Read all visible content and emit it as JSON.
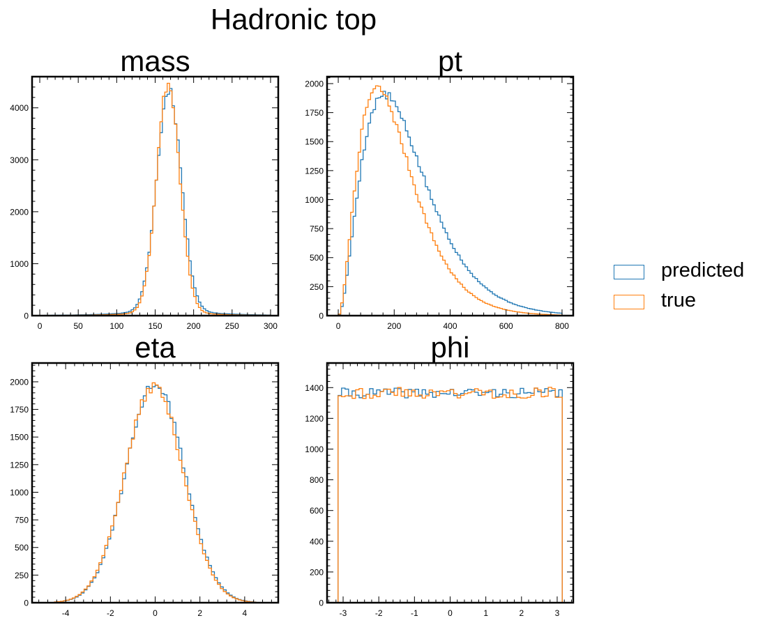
{
  "figure": {
    "suptitle": "Hadronic top"
  },
  "colors": {
    "predicted": "#1f77b4",
    "true": "#ff7f0e"
  },
  "legend": {
    "placement": "right",
    "items": [
      {
        "label": "predicted",
        "color": "#1f77b4"
      },
      {
        "label": "true",
        "color": "#ff7f0e"
      }
    ]
  },
  "chart_data": [
    {
      "type": "histogram-step",
      "title": "mass",
      "xlim": [
        -10,
        310
      ],
      "ylim": [
        0,
        4600
      ],
      "xticks": [
        0,
        50,
        100,
        150,
        200,
        250,
        300
      ],
      "xticklabels": [
        "0",
        "50",
        "100",
        "150",
        "200",
        "250",
        "300"
      ],
      "yticks": [
        0,
        1000,
        2000,
        3000,
        4000
      ],
      "yticklabels": [
        "0",
        "1000",
        "2000",
        "3000",
        "4000"
      ],
      "profile": "bell",
      "series": [
        {
          "name": "predicted",
          "range": [
            0,
            300
          ],
          "bins": 96,
          "peak": 4200,
          "center": 168,
          "sigma": 16,
          "tail": 0.04,
          "seed": 11
        },
        {
          "name": "true",
          "range": [
            0,
            300
          ],
          "bins": 96,
          "peak": 4380,
          "center": 167,
          "sigma": 15,
          "tail": 0.025,
          "seed": 23
        }
      ]
    },
    {
      "type": "histogram-step",
      "title": "pt",
      "xlim": [
        -40,
        840
      ],
      "ylim": [
        0,
        2060
      ],
      "xticks": [
        0,
        200,
        400,
        600,
        800
      ],
      "xticklabels": [
        "0",
        "200",
        "400",
        "600",
        "800"
      ],
      "yticks": [
        0,
        250,
        500,
        750,
        1000,
        1250,
        1500,
        1750,
        2000
      ],
      "yticklabels": [
        "0",
        "250",
        "500",
        "750",
        "1000",
        "1250",
        "1500",
        "1750",
        "2000"
      ],
      "profile": "rise-fall",
      "series": [
        {
          "name": "predicted",
          "range": [
            0,
            800
          ],
          "bins": 90,
          "peak": 1905,
          "mode": 165,
          "seed": 5
        },
        {
          "name": "true",
          "range": [
            0,
            800
          ],
          "bins": 90,
          "peak": 1960,
          "mode": 140,
          "seed": 7
        }
      ]
    },
    {
      "type": "histogram-step",
      "title": "eta",
      "xlim": [
        -5.5,
        5.5
      ],
      "ylim": [
        0,
        2170
      ],
      "xticks": [
        -4,
        -2,
        0,
        2,
        4
      ],
      "xticklabels": [
        "-4",
        "-2",
        "0",
        "2",
        "4"
      ],
      "yticks": [
        0,
        250,
        500,
        750,
        1000,
        1250,
        1500,
        1750,
        2000
      ],
      "yticklabels": [
        "0",
        "250",
        "500",
        "750",
        "1000",
        "1250",
        "1500",
        "1750",
        "2000"
      ],
      "profile": "bell",
      "series": [
        {
          "name": "predicted",
          "range": [
            -4.5,
            4.5
          ],
          "bins": 68,
          "peak": 1990,
          "center": 0.0,
          "sigma": 1.3,
          "tail": 0.0,
          "seed": 31
        },
        {
          "name": "true",
          "range": [
            -4.5,
            4.5
          ],
          "bins": 68,
          "peak": 1960,
          "center": -0.05,
          "sigma": 1.3,
          "tail": 0.0,
          "seed": 37
        }
      ]
    },
    {
      "type": "histogram-step",
      "title": "phi",
      "xlim": [
        -3.45,
        3.45
      ],
      "ylim": [
        0,
        1560
      ],
      "xticks": [
        -3,
        -2,
        -1,
        0,
        1,
        2,
        3
      ],
      "xticklabels": [
        "-3",
        "-2",
        "-1",
        "0",
        "1",
        "2",
        "3"
      ],
      "yticks": [
        0,
        200,
        400,
        600,
        800,
        1000,
        1200,
        1400
      ],
      "yticklabels": [
        "0",
        "200",
        "400",
        "600",
        "800",
        "1000",
        "1200",
        "1400"
      ],
      "profile": "flat",
      "series": [
        {
          "name": "predicted",
          "range": [
            -3.14159,
            3.14159
          ],
          "bins": 64,
          "level": 1365,
          "jitter": 32,
          "seed": 41
        },
        {
          "name": "true",
          "range": [
            -3.14159,
            3.14159
          ],
          "bins": 64,
          "level": 1365,
          "jitter": 38,
          "seed": 43
        }
      ]
    }
  ]
}
